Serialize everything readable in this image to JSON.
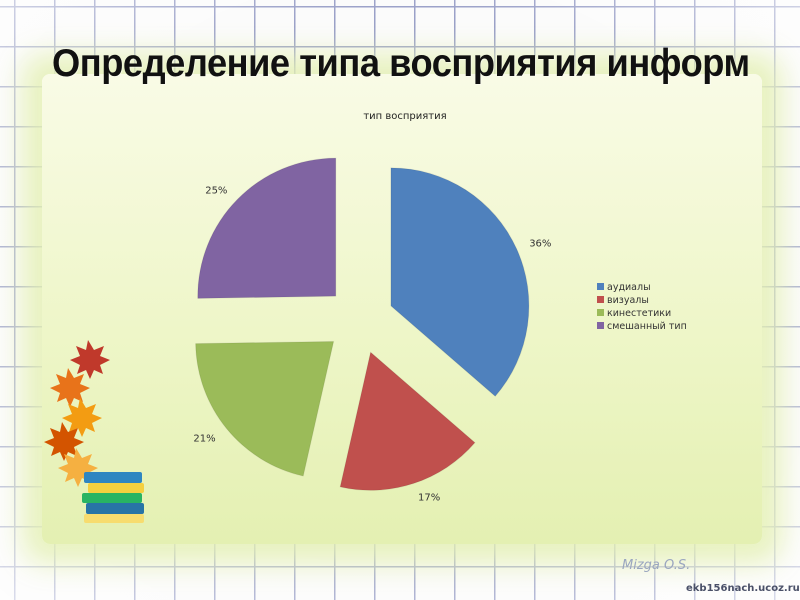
{
  "slide": {
    "title": "Определение типа восприятия информац",
    "signature": "Mizga O.S.",
    "site": "ekb156nach.ucoz.ru"
  },
  "colors": {
    "panel": "#eef6c8",
    "audials": "#4f81bd",
    "visuals": "#c0504d",
    "kinesthetics": "#9bbb59",
    "mixed": "#8064a2"
  },
  "chart_data": {
    "type": "pie",
    "title": "тип восприятия",
    "exploded": true,
    "legend_position": "right",
    "categories": [
      "аудиалы",
      "визуалы",
      "кинестетики",
      "смешанный тип"
    ],
    "values": [
      36,
      17,
      21,
      25
    ],
    "labels": [
      "36%",
      "17%",
      "21%",
      "25%"
    ],
    "colors": [
      "#4f81bd",
      "#c0504d",
      "#9bbb59",
      "#8064a2"
    ]
  }
}
